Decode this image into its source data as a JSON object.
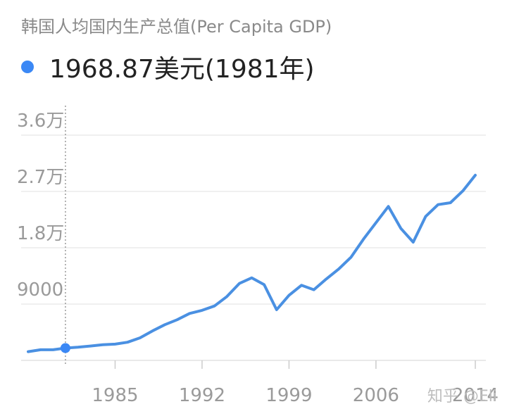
{
  "header": {
    "title": "韩国人均国内生产总值(Per Capita GDP)",
    "selected_value": "1968.87美元",
    "selected_year_label": "(1981年)",
    "dot_color": "#3b88f5"
  },
  "watermark": "知乎 @Eli",
  "chart_data": {
    "type": "line",
    "title": "韩国人均国内生产总值(Per Capita GDP)",
    "xlabel": "",
    "ylabel": "",
    "xlim": [
      1978,
      2014
    ],
    "ylim": [
      0,
      36000
    ],
    "x_ticks": [
      1985,
      1992,
      1999,
      2006,
      2014
    ],
    "x_tick_labels": [
      "1985",
      "1992",
      "1999",
      "2006",
      "2014"
    ],
    "y_ticks": [
      9000,
      18000,
      27000,
      36000
    ],
    "y_tick_labels": [
      "9000",
      "1.8万",
      "2.7万",
      "3.6万"
    ],
    "grid": true,
    "line_color": "#4a90e2",
    "selected_point": {
      "x": 1981,
      "y": 1968.87
    },
    "series": [
      {
        "x": [
          1978,
          1979,
          1980,
          1981,
          1982,
          1983,
          1984,
          1985,
          1986,
          1987,
          1988,
          1989,
          1990,
          1991,
          1992,
          1993,
          1994,
          1995,
          1996,
          1997,
          1998,
          1999,
          2000,
          2001,
          2002,
          2003,
          2004,
          2005,
          2006,
          2007,
          2008,
          2009,
          2010,
          2011,
          2012,
          2013,
          2014
        ],
        "y": [
          1400,
          1700,
          1700,
          1969,
          2100,
          2300,
          2500,
          2600,
          2900,
          3600,
          4700,
          5700,
          6500,
          7500,
          8000,
          8700,
          10200,
          12300,
          13200,
          12100,
          8100,
          10400,
          12000,
          11300,
          13000,
          14600,
          16500,
          19400,
          22000,
          24600,
          21100,
          18900,
          23000,
          24900,
          25200,
          27100,
          29600
        ]
      }
    ]
  }
}
